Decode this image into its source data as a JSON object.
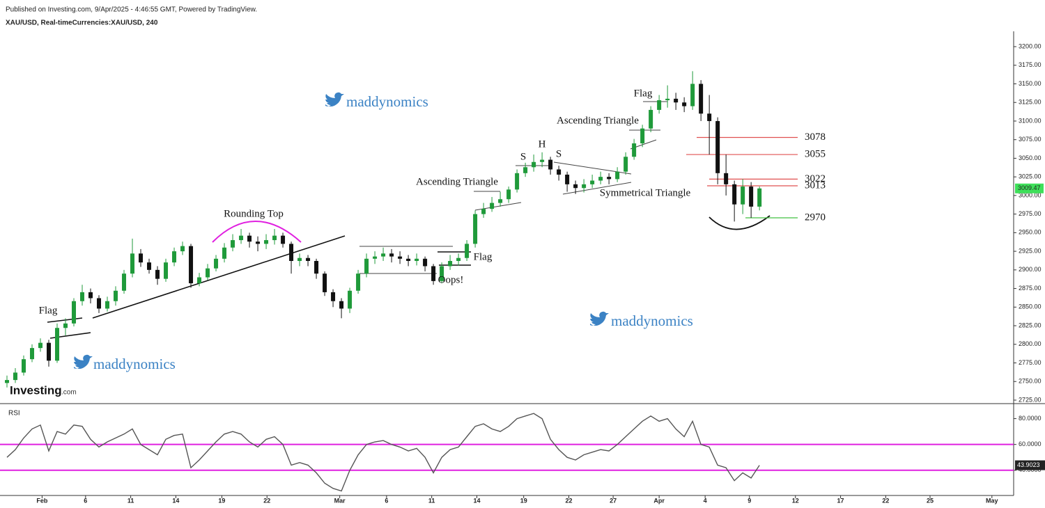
{
  "header": {
    "source": "Published on Investing.com, 9/Apr/2025 - 4:46:55 GMT, Powered by TradingView.",
    "logo": "Investing",
    "logo_suffix": ".com",
    "watermarks": [
      "maddynomics",
      "maddynomics",
      "maddynomics"
    ]
  },
  "chart_data": [
    {
      "type": "candlestick",
      "title": "XAU/USD, Real-timeCurrencies:XAU/USD, 240",
      "up_color": "#1f9a3a",
      "down_color": "#111111",
      "last_color": "#3ee05a",
      "xlim": [
        -0.5,
        120.4
      ],
      "ylim": [
        2720.3,
        3220.6
      ],
      "yticks": [
        {
          "value": 2725,
          "label": "2725.00"
        },
        {
          "value": 2750,
          "label": "2750.00"
        },
        {
          "value": 2775,
          "label": "2775.00"
        },
        {
          "value": 2800,
          "label": "2800.00"
        },
        {
          "value": 2825,
          "label": "2825.00"
        },
        {
          "value": 2850,
          "label": "2850.00"
        },
        {
          "value": 2875,
          "label": "2875.00"
        },
        {
          "value": 2900,
          "label": "2900.00"
        },
        {
          "value": 2925,
          "label": "2925.00"
        },
        {
          "value": 2950,
          "label": "2950.00"
        },
        {
          "value": 2975,
          "label": "2975.00"
        },
        {
          "value": 3000,
          "label": "3000.00"
        },
        {
          "value": 3025,
          "label": "3025.00"
        },
        {
          "value": 3050,
          "label": "3050.00"
        },
        {
          "value": 3075,
          "label": "3075.00"
        },
        {
          "value": 3100,
          "label": "3100.00"
        },
        {
          "value": 3125,
          "label": "3125.00"
        },
        {
          "value": 3150,
          "label": "3150.00"
        },
        {
          "value": 3175,
          "label": "3175.00"
        },
        {
          "value": 3200,
          "label": "3200.00"
        }
      ],
      "ohlc": [
        [
          2748,
          2758,
          2742,
          2752
        ],
        [
          2752,
          2768,
          2748,
          2762
        ],
        [
          2762,
          2785,
          2758,
          2780
        ],
        [
          2780,
          2800,
          2776,
          2795
        ],
        [
          2795,
          2808,
          2790,
          2802
        ],
        [
          2802,
          2806,
          2770,
          2778
        ],
        [
          2778,
          2828,
          2775,
          2822
        ],
        [
          2822,
          2835,
          2812,
          2828
        ],
        [
          2828,
          2862,
          2824,
          2858
        ],
        [
          2858,
          2880,
          2852,
          2870
        ],
        [
          2870,
          2875,
          2855,
          2862
        ],
        [
          2862,
          2866,
          2842,
          2848
        ],
        [
          2848,
          2864,
          2844,
          2858
        ],
        [
          2858,
          2878,
          2852,
          2872
        ],
        [
          2872,
          2900,
          2868,
          2895
        ],
        [
          2895,
          2942,
          2890,
          2922
        ],
        [
          2922,
          2928,
          2904,
          2910
        ],
        [
          2910,
          2915,
          2895,
          2900
        ],
        [
          2900,
          2905,
          2880,
          2888
        ],
        [
          2888,
          2915,
          2884,
          2910
        ],
        [
          2910,
          2930,
          2905,
          2925
        ],
        [
          2925,
          2938,
          2920,
          2932
        ],
        [
          2932,
          2935,
          2876,
          2882
        ],
        [
          2882,
          2896,
          2878,
          2890
        ],
        [
          2890,
          2908,
          2886,
          2902
        ],
        [
          2902,
          2920,
          2898,
          2915
        ],
        [
          2915,
          2936,
          2910,
          2930
        ],
        [
          2930,
          2948,
          2925,
          2940
        ],
        [
          2940,
          2955,
          2935,
          2946
        ],
        [
          2946,
          2950,
          2930,
          2938
        ],
        [
          2938,
          2945,
          2925,
          2935
        ],
        [
          2935,
          2948,
          2928,
          2940
        ],
        [
          2940,
          2955,
          2934,
          2946
        ],
        [
          2946,
          2950,
          2930,
          2935
        ],
        [
          2935,
          2938,
          2895,
          2912
        ],
        [
          2912,
          2922,
          2905,
          2916
        ],
        [
          2916,
          2920,
          2905,
          2912
        ],
        [
          2912,
          2915,
          2888,
          2895
        ],
        [
          2895,
          2898,
          2865,
          2870
        ],
        [
          2870,
          2874,
          2850,
          2858
        ],
        [
          2858,
          2862,
          2835,
          2848
        ],
        [
          2848,
          2876,
          2842,
          2872
        ],
        [
          2872,
          2900,
          2868,
          2895
        ],
        [
          2895,
          2922,
          2890,
          2915
        ],
        [
          2915,
          2925,
          2908,
          2918
        ],
        [
          2918,
          2930,
          2912,
          2922
        ],
        [
          2922,
          2928,
          2910,
          2918
        ],
        [
          2918,
          2925,
          2908,
          2915
        ],
        [
          2915,
          2920,
          2905,
          2912
        ],
        [
          2912,
          2922,
          2906,
          2915
        ],
        [
          2915,
          2918,
          2898,
          2905
        ],
        [
          2905,
          2908,
          2880,
          2885
        ],
        [
          2885,
          2910,
          2882,
          2905
        ],
        [
          2905,
          2920,
          2900,
          2912
        ],
        [
          2912,
          2922,
          2906,
          2916
        ],
        [
          2916,
          2940,
          2912,
          2935
        ],
        [
          2935,
          2980,
          2930,
          2975
        ],
        [
          2975,
          2990,
          2970,
          2982
        ],
        [
          2982,
          2998,
          2978,
          2990
        ],
        [
          2990,
          3005,
          2985,
          2995
        ],
        [
          2995,
          3012,
          2990,
          3008
        ],
        [
          3008,
          3035,
          3004,
          3030
        ],
        [
          3030,
          3044,
          3025,
          3038
        ],
        [
          3038,
          3055,
          3032,
          3045
        ],
        [
          3045,
          3058,
          3038,
          3048
        ],
        [
          3048,
          3052,
          3028,
          3035
        ],
        [
          3035,
          3040,
          3020,
          3028
        ],
        [
          3028,
          3032,
          3005,
          3015
        ],
        [
          3015,
          3020,
          3002,
          3010
        ],
        [
          3010,
          3022,
          3004,
          3015
        ],
        [
          3015,
          3028,
          3010,
          3020
        ],
        [
          3020,
          3032,
          3015,
          3025
        ],
        [
          3025,
          3030,
          3015,
          3022
        ],
        [
          3022,
          3038,
          3018,
          3032
        ],
        [
          3032,
          3058,
          3028,
          3052
        ],
        [
          3052,
          3076,
          3048,
          3070
        ],
        [
          3070,
          3095,
          3065,
          3090
        ],
        [
          3090,
          3120,
          3085,
          3115
        ],
        [
          3115,
          3135,
          3110,
          3128
        ],
        [
          3128,
          3148,
          3118,
          3130
        ],
        [
          3130,
          3138,
          3115,
          3125
        ],
        [
          3125,
          3132,
          3112,
          3120
        ],
        [
          3120,
          3167,
          3115,
          3150
        ],
        [
          3150,
          3155,
          3100,
          3110
        ],
        [
          3110,
          3135,
          3055,
          3100
        ],
        [
          3100,
          3105,
          3015,
          3030
        ],
        [
          3030,
          3055,
          3000,
          3015
        ],
        [
          3015,
          3020,
          2965,
          2988
        ],
        [
          2988,
          3022,
          2975,
          3012
        ],
        [
          3012,
          3018,
          2970,
          2985
        ],
        [
          2985,
          3012,
          2980,
          3009.47
        ]
      ],
      "annotations": [
        "Flag",
        "Rounding Top",
        "Oops!",
        "Flag",
        "Ascending Triangle",
        "S",
        "H",
        "S",
        "Ascending Triangle",
        "Symmetrical Triangle",
        "Flag"
      ],
      "levels": [
        {
          "value": 3078,
          "color": "#e05050"
        },
        {
          "value": 3055,
          "color": "#e05050"
        },
        {
          "value": 3022,
          "color": "#e05050"
        },
        {
          "value": 3013,
          "color": "#e05050"
        },
        {
          "value": 2970,
          "color": "#40c040"
        }
      ]
    },
    {
      "type": "line",
      "title": "RSI",
      "color": "#555555",
      "label_color": "#222222",
      "xlim": [
        -0.5,
        120.4
      ],
      "ylim": [
        20.5,
        90
      ],
      "yticks": [
        {
          "value": 40,
          "label": "40.0000"
        },
        {
          "value": 60,
          "label": "60.0000"
        },
        {
          "value": 80,
          "label": "80.0000"
        }
      ],
      "hlines": [
        {
          "value": 60,
          "color": "#e020e0"
        },
        {
          "value": 40,
          "color": "#e020e0"
        }
      ],
      "xticks": [
        {
          "value": 4.2,
          "label": "Feb"
        },
        {
          "value": 9.4,
          "label": "6"
        },
        {
          "value": 14.8,
          "label": "11"
        },
        {
          "value": 20.2,
          "label": "14"
        },
        {
          "value": 25.7,
          "label": "19"
        },
        {
          "value": 31.1,
          "label": "22"
        },
        {
          "value": 39.8,
          "label": "Mar"
        },
        {
          "value": 45.4,
          "label": "6"
        },
        {
          "value": 50.8,
          "label": "11"
        },
        {
          "value": 56.2,
          "label": "14"
        },
        {
          "value": 61.8,
          "label": "19"
        },
        {
          "value": 67.2,
          "label": "22"
        },
        {
          "value": 72.5,
          "label": "27"
        },
        {
          "value": 78,
          "label": "Apr"
        },
        {
          "value": 83.5,
          "label": "4"
        },
        {
          "value": 88.8,
          "label": "9"
        },
        {
          "value": 94.3,
          "label": "12"
        },
        {
          "value": 99.7,
          "label": "17"
        },
        {
          "value": 105.1,
          "label": "22"
        },
        {
          "value": 110.4,
          "label": "25"
        },
        {
          "value": 117.8,
          "label": "May"
        }
      ],
      "values": [
        50,
        56,
        65,
        72,
        75,
        55,
        70,
        68,
        75,
        74,
        64,
        58,
        62,
        65,
        68,
        72,
        60,
        56,
        52,
        64,
        67,
        68,
        42,
        48,
        55,
        62,
        68,
        70,
        68,
        62,
        58,
        64,
        66,
        60,
        44,
        46,
        44,
        38,
        30,
        26,
        24,
        40,
        52,
        60,
        62,
        63,
        60,
        58,
        55,
        57,
        50,
        38,
        50,
        56,
        58,
        66,
        74,
        76,
        72,
        70,
        74,
        80,
        82,
        84,
        80,
        64,
        56,
        50,
        48,
        52,
        54,
        56,
        55,
        60,
        66,
        72,
        78,
        82,
        78,
        80,
        72,
        66,
        78,
        60,
        58,
        44,
        42,
        32,
        38,
        34,
        43.9023
      ]
    }
  ]
}
